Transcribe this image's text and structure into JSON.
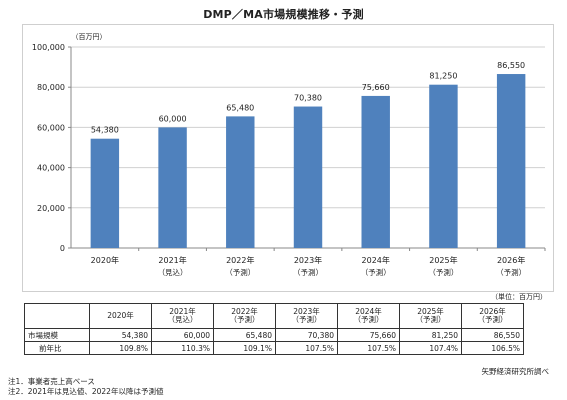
{
  "title": "DMP／MA市場規模推移・予測",
  "chart_data": {
    "type": "bar",
    "unit_label": "（百万円）",
    "categories": [
      "2020年",
      "2021年",
      "2022年",
      "2023年",
      "2024年",
      "2025年",
      "2026年"
    ],
    "category_notes": [
      "",
      "（見込）",
      "（予測）",
      "（予測）",
      "（予測）",
      "（予測）",
      "（予測）"
    ],
    "values": [
      54380,
      60000,
      65480,
      70380,
      75660,
      81250,
      86550
    ],
    "value_labels": [
      "54,380",
      "60,000",
      "65,480",
      "70,380",
      "75,660",
      "81,250",
      "86,550"
    ],
    "ylim": [
      0,
      100000
    ],
    "y_ticks": [
      "0",
      "20,000",
      "40,000",
      "60,000",
      "80,000",
      "100,000"
    ],
    "grid": true,
    "bar_color": "#4f81bd"
  },
  "table": {
    "unit": "（単位：百万円）",
    "headers": [
      {
        "year": "2020年",
        "note": ""
      },
      {
        "year": "2021年",
        "note": "（見込）"
      },
      {
        "year": "2022年",
        "note": "（予測）"
      },
      {
        "year": "2023年",
        "note": "（予測）"
      },
      {
        "year": "2024年",
        "note": "（予測）"
      },
      {
        "year": "2025年",
        "note": "（予測）"
      },
      {
        "year": "2026年",
        "note": "（予測）"
      }
    ],
    "rows": [
      {
        "label": "市場規模",
        "cells": [
          "54,380",
          "60,000",
          "65,480",
          "70,380",
          "75,660",
          "81,250",
          "86,550"
        ]
      },
      {
        "label": "前年比",
        "cells": [
          "109.8%",
          "110.3%",
          "109.1%",
          "107.5%",
          "107.5%",
          "107.4%",
          "106.5%"
        ]
      }
    ]
  },
  "source": "矢野経済研究所調べ",
  "notes": [
    "注1．事業者売上高ベース",
    "注2．2021年は見込値、2022年以降は予測値"
  ]
}
